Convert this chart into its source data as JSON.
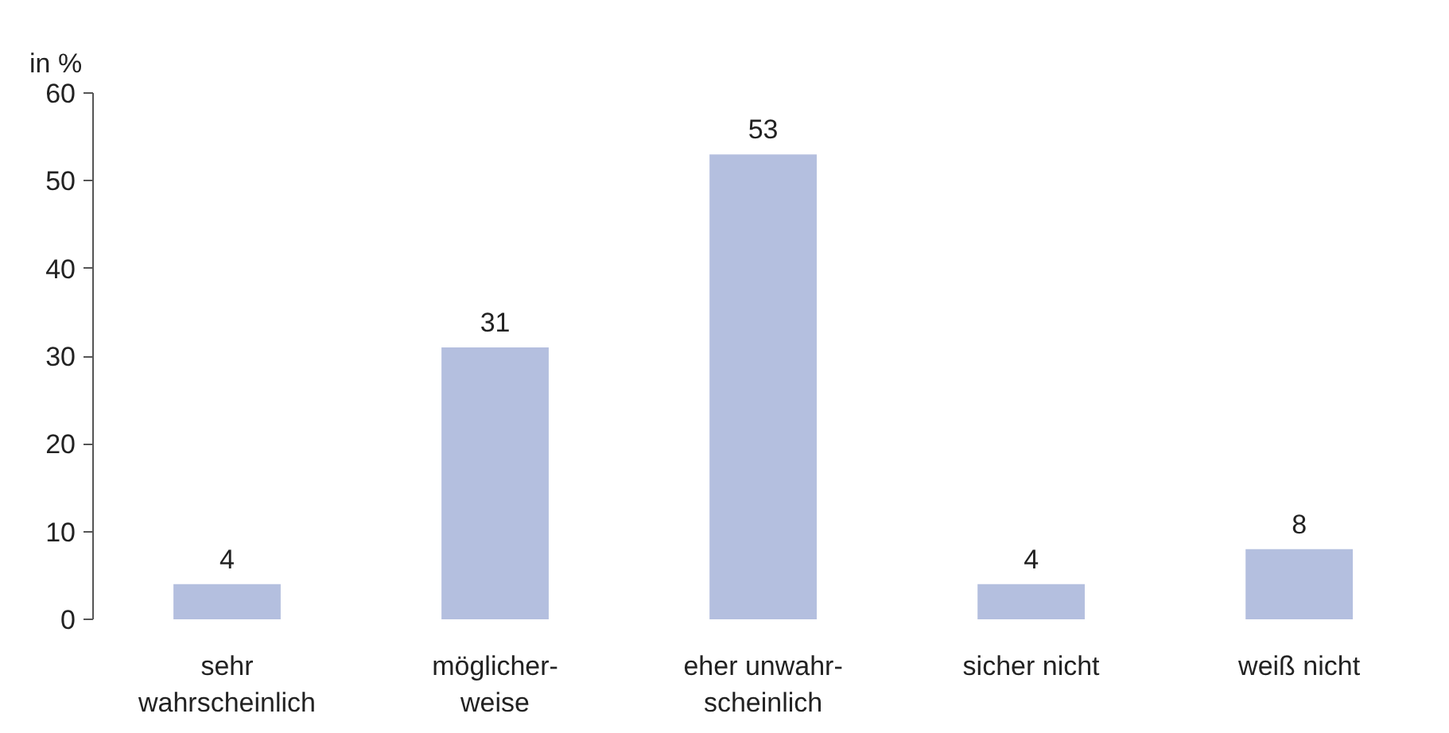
{
  "chart_data": {
    "type": "bar",
    "ylabel": "in %",
    "categories": [
      "sehr\nwahrscheinlich",
      "möglicher-\nweise",
      "eher unwahr-\nscheinlich",
      "sicher nicht",
      "weiß nicht"
    ],
    "values": [
      4,
      31,
      53,
      4,
      8
    ],
    "color": "#b4bfdf",
    "ylim": [
      0,
      60
    ],
    "yticks": [
      0,
      10,
      20,
      30,
      40,
      50,
      60
    ],
    "grid": false,
    "data_labels": true
  }
}
